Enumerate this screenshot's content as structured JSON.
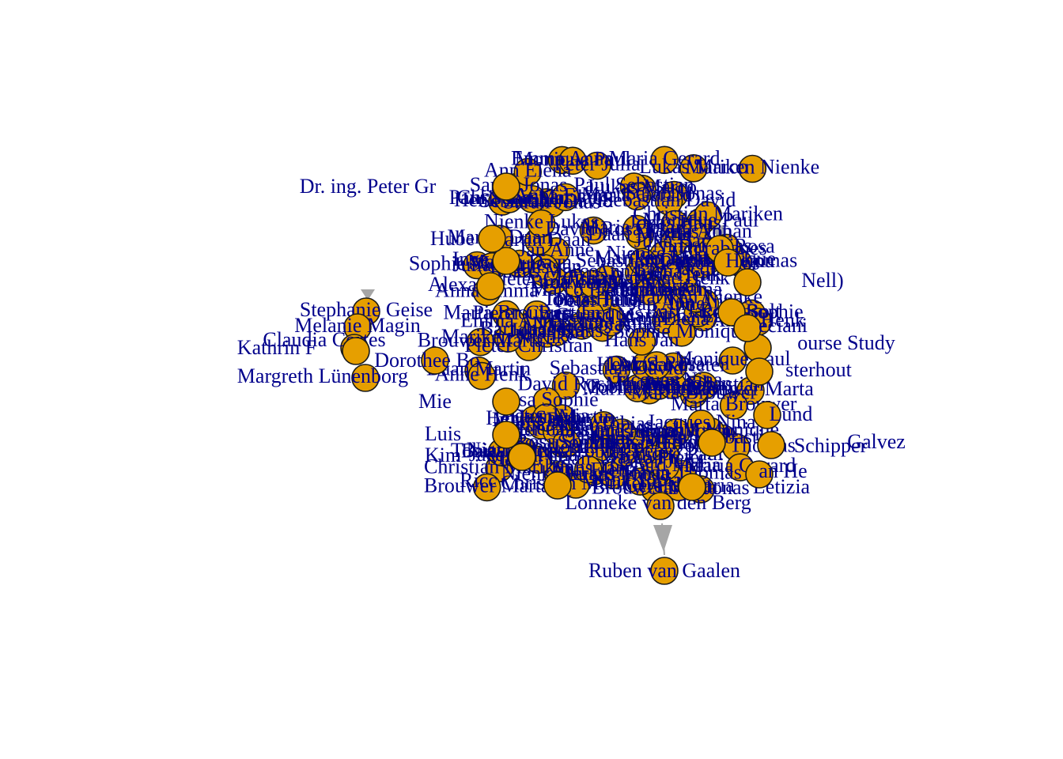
{
  "colors": {
    "node_fill": "#e69f00",
    "node_stroke": "#1a1a1a",
    "label": "#00008b",
    "edge": "#a6a6a6"
  },
  "legible_nodes": [
    "Dr. ing. Peter Gr",
    "Stephanie Geise",
    "Melanie Magin",
    "Claudia Cortes",
    "Kathrin F",
    "Dorothee Bo",
    "Margreth Lünenborg",
    "Alexa",
    "Inge",
    "Hube",
    "Lonneke van den Berg",
    "Ruben van Gaalen",
    "Letizia",
    "an He",
    "Galvez",
    "Schipper",
    "ourse Study",
    "sterhout",
    "Bolt",
    "eciani",
    "rabanes",
    "Hema",
    "Lund",
    "Nell)",
    "Luis",
    "Kim",
    "Ricc",
    "Mie"
  ],
  "clutter_tokens": [
    "Mariken",
    "Brouwer",
    "Jacques",
    "Nienke",
    "Gerard",
    "Bart",
    "Monique",
    "Daan",
    "Henk",
    "Paul",
    "Marta",
    "Anne",
    "Pieter",
    "Johan",
    "Tobias",
    "Christian",
    "Martin",
    "Nina",
    "Rosa",
    "Elena",
    "Jonas",
    "Sophie",
    "Thomas",
    "Sarah",
    "Lukas",
    "Emma",
    "Julia",
    "Marco",
    "Ann",
    "Peter",
    "Sebastian",
    "Maria",
    "Jan",
    "David",
    "Anna",
    "Hans"
  ]
}
